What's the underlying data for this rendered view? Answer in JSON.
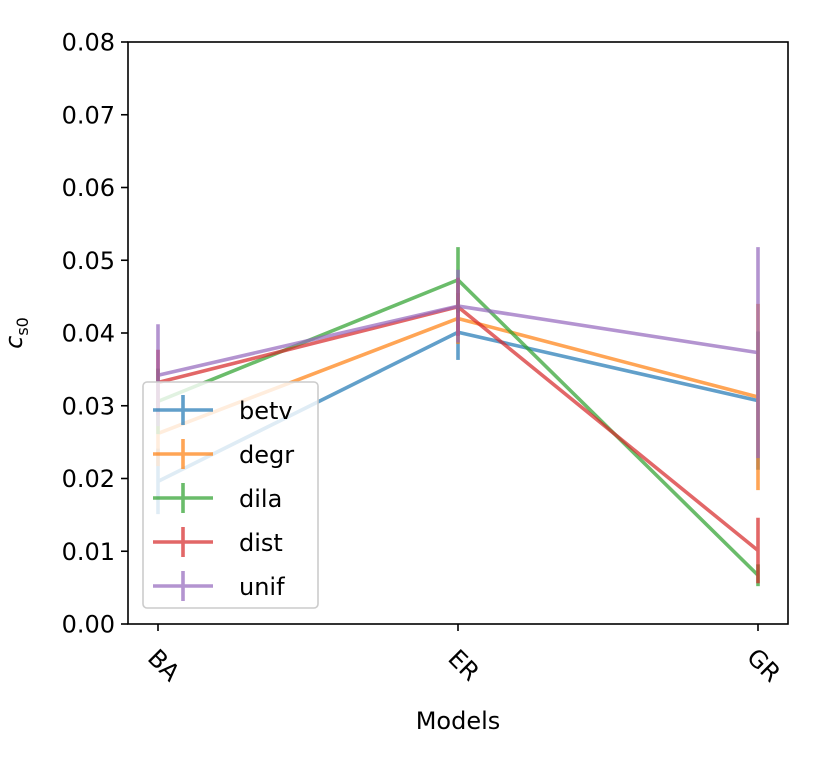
{
  "chart_data": {
    "type": "line",
    "title": "",
    "xlabel": "Models",
    "ylabel": "c",
    "ylabel_subscript": "s0",
    "categories": [
      "BA",
      "ER",
      "GR"
    ],
    "ylim": [
      0.0,
      0.08
    ],
    "yticks": [
      "0.00",
      "0.01",
      "0.02",
      "0.03",
      "0.04",
      "0.05",
      "0.06",
      "0.07",
      "0.08"
    ],
    "ytick_values": [
      0.0,
      0.01,
      0.02,
      0.03,
      0.04,
      0.05,
      0.06,
      0.07,
      0.08
    ],
    "grid": false,
    "legend_position": "lower-left",
    "series": [
      {
        "name": "betv",
        "color": "#1f77b4",
        "values": [
          0.0196,
          0.0401,
          0.0307
        ],
        "errors": [
          0.0045,
          0.0038,
          0.0095
        ]
      },
      {
        "name": "degr",
        "color": "#ff7f0e",
        "values": [
          0.0262,
          0.042,
          0.0312
        ],
        "errors": [
          0.0045,
          0.0035,
          0.0128
        ]
      },
      {
        "name": "dila",
        "color": "#2ca02c",
        "values": [
          0.0306,
          0.0473,
          0.0067
        ],
        "errors": [
          0.0045,
          0.0045,
          0.0015
        ]
      },
      {
        "name": "dist",
        "color": "#d62728",
        "values": [
          0.0332,
          0.0436,
          0.0101
        ],
        "errors": [
          0.0045,
          0.004,
          0.0045
        ]
      },
      {
        "name": "unif",
        "color": "#9467bd",
        "values": [
          0.0342,
          0.0437,
          0.0373
        ],
        "errors": [
          0.007,
          0.005,
          0.0145
        ]
      }
    ]
  }
}
